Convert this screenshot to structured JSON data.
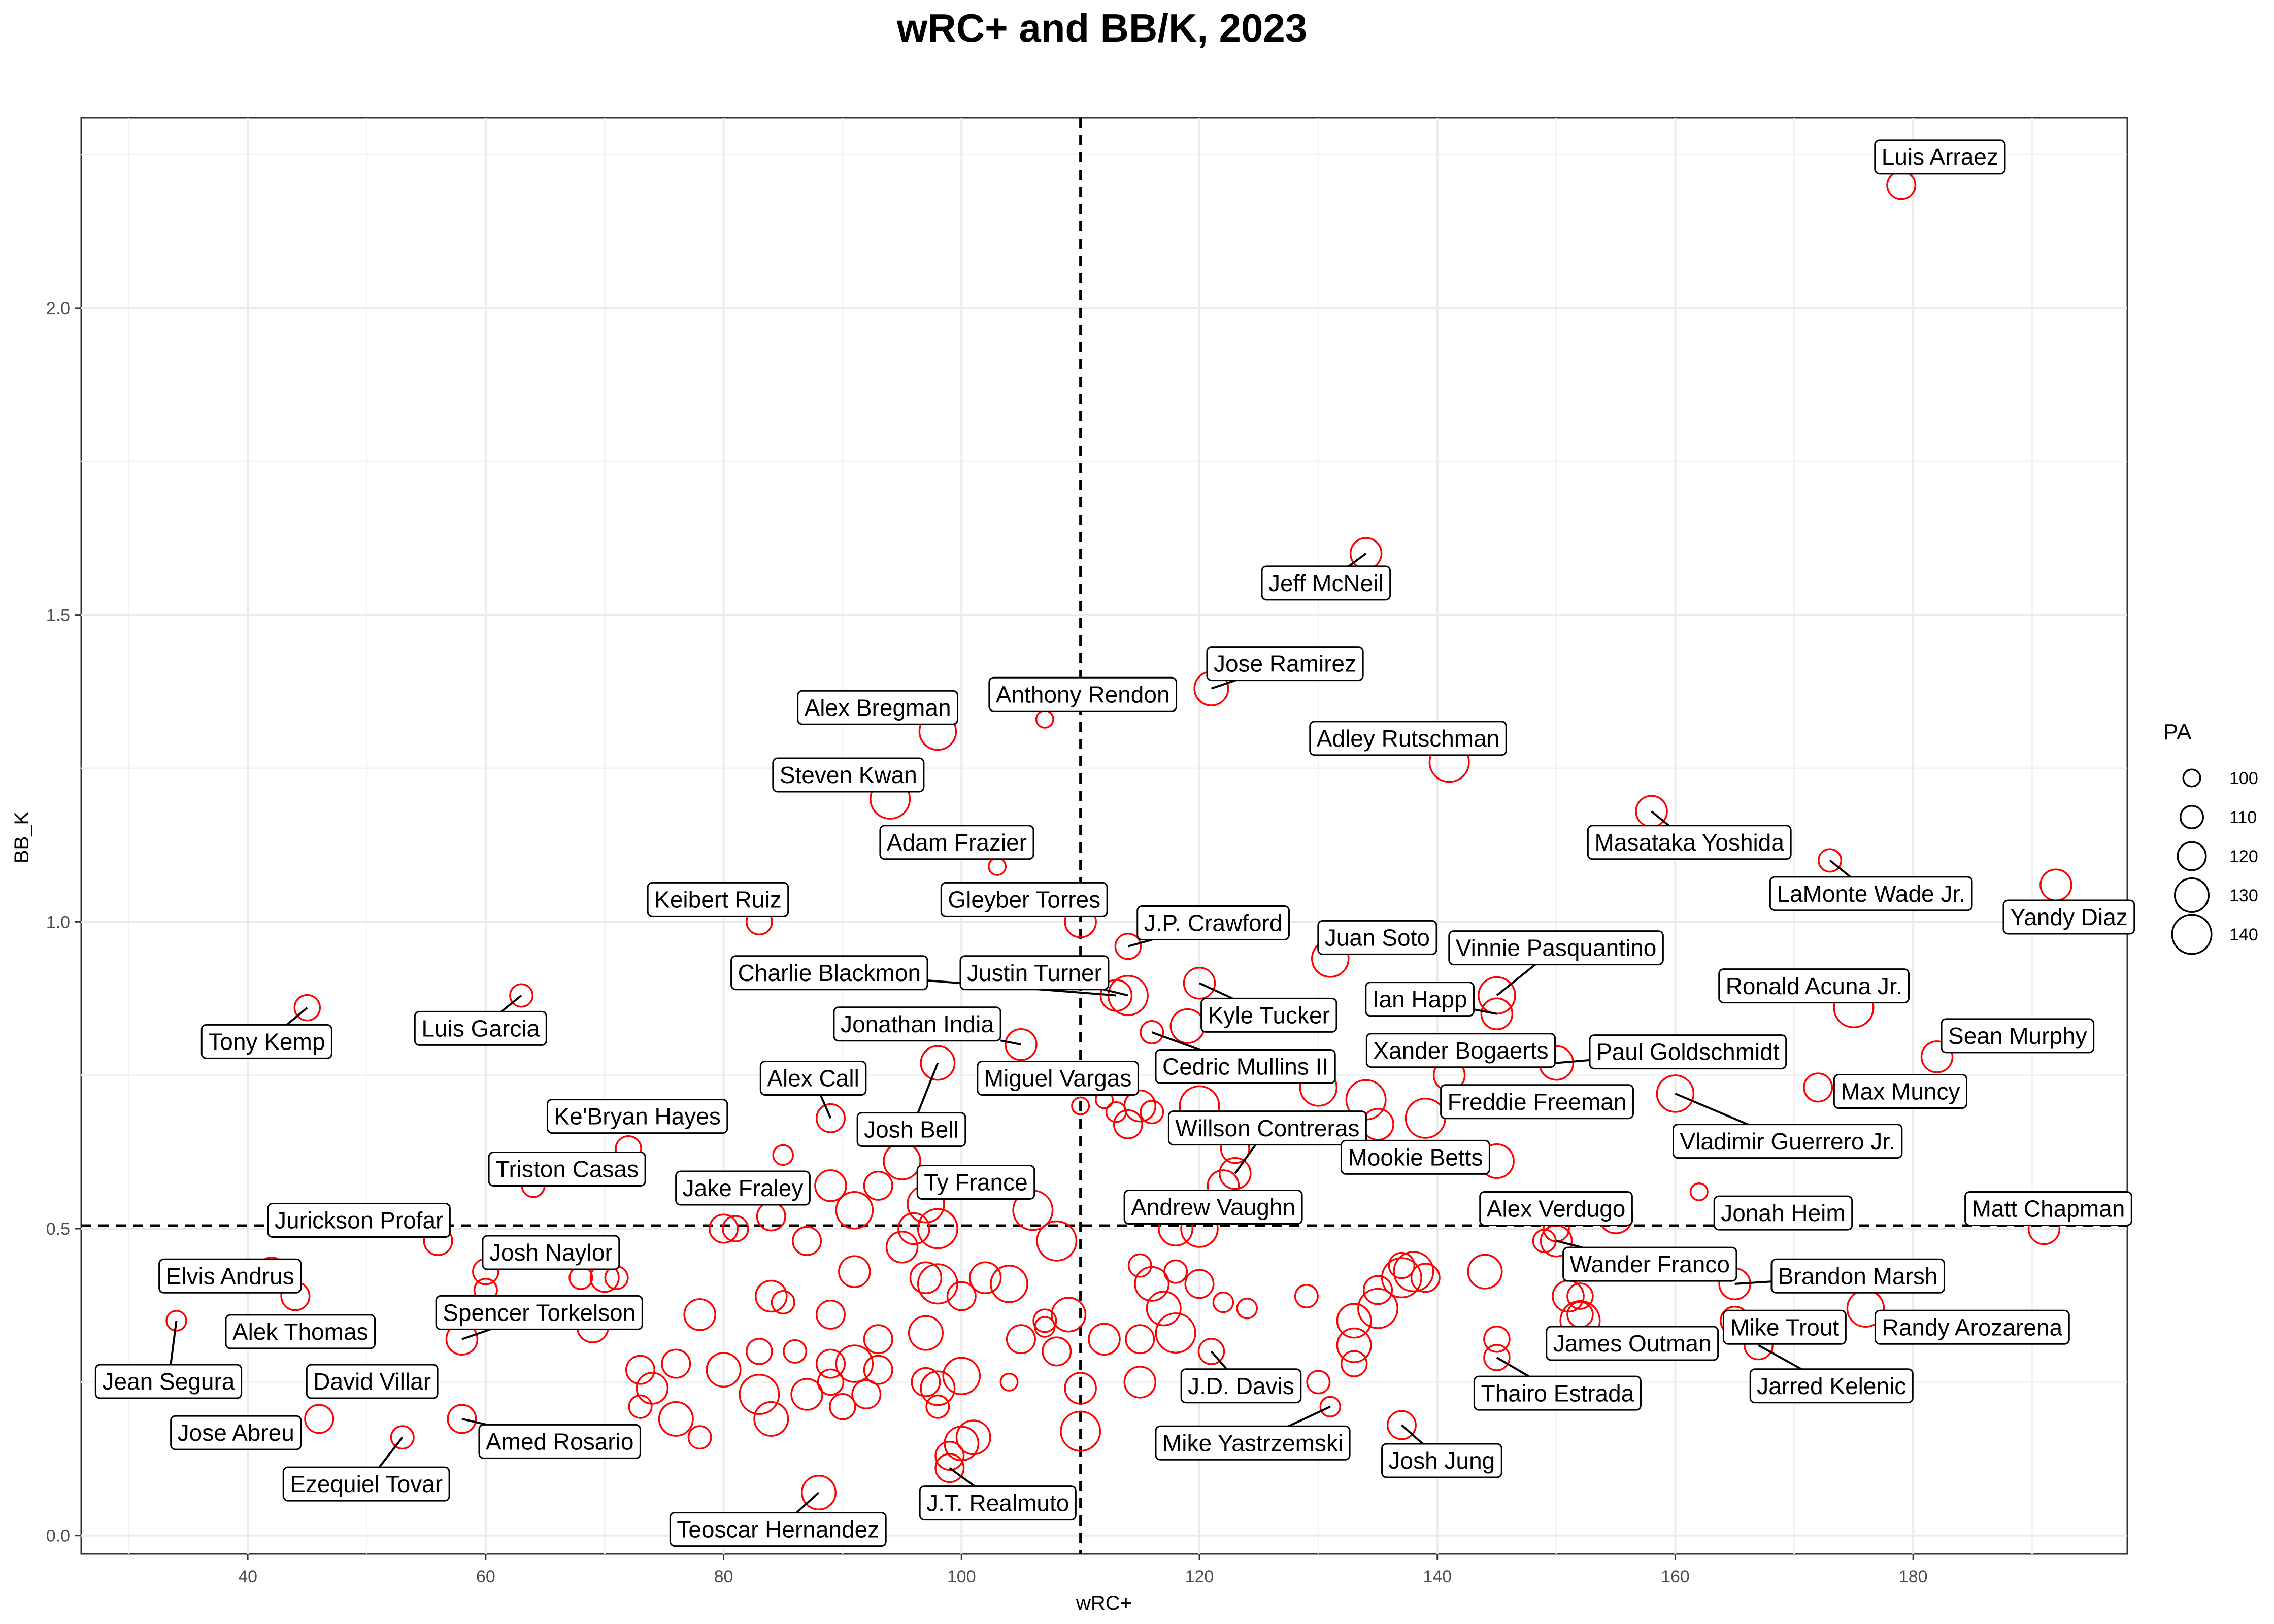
{
  "chart_data": {
    "type": "scatter",
    "title": "wRC+ and BB/K, 2023",
    "xlabel": "wRC+",
    "ylabel": "BB_K",
    "xlim": [
      26,
      198
    ],
    "ylim": [
      -0.03,
      2.31
    ],
    "x_ticks": [
      40,
      60,
      80,
      100,
      120,
      140,
      160,
      180
    ],
    "y_ticks": [
      0.0,
      0.5,
      1.0,
      1.5,
      2.0
    ],
    "y_tick_labels": [
      "0.0",
      "0.5",
      "1.0",
      "1.5",
      "2.0"
    ],
    "grid": true,
    "point_color": "#ff0000",
    "reference_lines": {
      "x": 110,
      "y": 0.505,
      "style": "dashed"
    },
    "legend": {
      "title": "PA",
      "position": "right",
      "values": [
        100,
        110,
        120,
        130,
        140
      ],
      "labels": [
        "100",
        "110",
        "120",
        "130",
        "140"
      ]
    },
    "points": [
      {
        "x": 179,
        "y": 2.2,
        "pa": 120,
        "label": "Luis Arraez",
        "lx": 1324,
        "ly": 107
      },
      {
        "x": 134,
        "y": 1.6,
        "pa": 125,
        "label": "Jeff McNeil",
        "lx": 905,
        "ly": 398
      },
      {
        "x": 121,
        "y": 1.38,
        "pa": 130,
        "label": "Jose Ramirez",
        "lx": 877,
        "ly": 453
      },
      {
        "x": 107,
        "y": 1.33,
        "pa": 100,
        "label": "Anthony Rendon",
        "lx": 739,
        "ly": 474
      },
      {
        "x": 98,
        "y": 1.31,
        "pa": 135,
        "label": "Alex Bregman",
        "lx": 599,
        "ly": 483
      },
      {
        "x": 141,
        "y": 1.26,
        "pa": 140,
        "label": "Adley Rutschman",
        "lx": 961,
        "ly": 504
      },
      {
        "x": 94,
        "y": 1.2,
        "pa": 140,
        "label": "Steven Kwan",
        "lx": 579,
        "ly": 529
      },
      {
        "x": 158,
        "y": 1.18,
        "pa": 125,
        "label": "Masataka Yoshida",
        "lx": 1153,
        "ly": 575
      },
      {
        "x": 173,
        "y": 1.1,
        "pa": 110,
        "label": "LaMonte Wade Jr.",
        "lx": 1277,
        "ly": 610
      },
      {
        "x": 103,
        "y": 1.09,
        "pa": 100,
        "label": "Adam Frazier",
        "lx": 653,
        "ly": 575
      },
      {
        "x": 192,
        "y": 1.06,
        "pa": 125,
        "label": "Yandy Diaz",
        "lx": 1412,
        "ly": 626
      },
      {
        "x": 110,
        "y": 1.0,
        "pa": 125,
        "label": "Gleyber Torres",
        "lx": 699,
        "ly": 614
      },
      {
        "x": 83,
        "y": 1.0,
        "pa": 115,
        "label": "Keibert Ruiz",
        "lx": 490,
        "ly": 614
      },
      {
        "x": 114,
        "y": 0.96,
        "pa": 115,
        "label": "J.P. Crawford",
        "lx": 828,
        "ly": 630
      },
      {
        "x": 131,
        "y": 0.94,
        "pa": 135,
        "label": "Juan Soto",
        "lx": 940,
        "ly": 640
      },
      {
        "x": 145,
        "y": 0.88,
        "pa": 135,
        "label": "Vinnie Pasquantino",
        "lx": 1062,
        "ly": 647
      },
      {
        "x": 63,
        "y": 0.88,
        "pa": 110,
        "label": "Luis Garcia",
        "lx": 328,
        "ly": 702
      },
      {
        "x": 45,
        "y": 0.86,
        "pa": 115,
        "label": "Tony Kemp",
        "lx": 182,
        "ly": 711
      },
      {
        "x": 114,
        "y": 0.88,
        "pa": 140,
        "label": "Justin Turner",
        "lx": 706,
        "ly": 664
      },
      {
        "x": 113,
        "y": 0.88,
        "pa": 125,
        "label": "Charlie Blackmon",
        "lx": 566,
        "ly": 664
      },
      {
        "x": 145,
        "y": 0.85,
        "pa": 125,
        "label": "Ian Happ",
        "lx": 969,
        "ly": 682
      },
      {
        "x": 120,
        "y": 0.9,
        "pa": 125,
        "label": "Kyle Tucker",
        "lx": 866,
        "ly": 693
      },
      {
        "x": 175,
        "y": 0.86,
        "pa": 140,
        "label": "Ronald Acuna Jr.",
        "lx": 1238,
        "ly": 673
      },
      {
        "x": 116,
        "y": 0.82,
        "pa": 110,
        "label": "Cedric Mullins II",
        "lx": 850,
        "ly": 728
      },
      {
        "x": 105,
        "y": 0.8,
        "pa": 125,
        "label": "Jonathan India",
        "lx": 626,
        "ly": 699
      },
      {
        "x": 182,
        "y": 0.78,
        "pa": 125,
        "label": "Sean Murphy",
        "lx": 1377,
        "ly": 707
      },
      {
        "x": 150,
        "y": 0.77,
        "pa": 130,
        "label": "Paul Goldschmidt",
        "lx": 1152,
        "ly": 718
      },
      {
        "x": 141,
        "y": 0.75,
        "pa": 125,
        "label": "Xander Bogaerts",
        "lx": 997,
        "ly": 717
      },
      {
        "x": 172,
        "y": 0.73,
        "pa": 120,
        "label": "Max Muncy",
        "lx": 1297,
        "ly": 745
      },
      {
        "x": 98,
        "y": 0.77,
        "pa": 130,
        "label": "Josh Bell",
        "lx": 622,
        "ly": 771
      },
      {
        "x": 110,
        "y": 0.7,
        "pa": 100,
        "label": "Miguel Vargas",
        "lx": 722,
        "ly": 736
      },
      {
        "x": 160,
        "y": 0.72,
        "pa": 135,
        "label": "Vladimir Guerrero Jr.",
        "lx": 1220,
        "ly": 779
      },
      {
        "x": 139,
        "y": 0.68,
        "pa": 140,
        "label": "Freddie Freeman",
        "lx": 1049,
        "ly": 752
      },
      {
        "x": 89,
        "y": 0.68,
        "pa": 120,
        "label": "Alex Call",
        "lx": 555,
        "ly": 736
      },
      {
        "x": 123,
        "y": 0.59,
        "pa": 125,
        "label": "Willson Contreras",
        "lx": 865,
        "ly": 770
      },
      {
        "x": 145,
        "y": 0.61,
        "pa": 130,
        "label": "Mookie Betts",
        "lx": 966,
        "ly": 790
      },
      {
        "x": 72,
        "y": 0.63,
        "pa": 115,
        "label": "Ke'Bryan Hayes",
        "lx": 435,
        "ly": 762
      },
      {
        "x": 64,
        "y": 0.57,
        "pa": 110,
        "label": "Triston Casas",
        "lx": 387,
        "ly": 798
      },
      {
        "x": 84,
        "y": 0.52,
        "pa": 120,
        "label": "Jake Fraley",
        "lx": 507,
        "ly": 811
      },
      {
        "x": 97,
        "y": 0.54,
        "pa": 135,
        "label": "Ty France",
        "lx": 666,
        "ly": 807
      },
      {
        "x": 122,
        "y": 0.57,
        "pa": 125,
        "label": "Andrew Vaughn",
        "lx": 828,
        "ly": 824
      },
      {
        "x": 155,
        "y": 0.52,
        "pa": 130,
        "label": "Alex Verdugo",
        "lx": 1062,
        "ly": 825
      },
      {
        "x": 162,
        "y": 0.56,
        "pa": 100,
        "label": "Jonah Heim",
        "lx": 1217,
        "ly": 828
      },
      {
        "x": 191,
        "y": 0.5,
        "pa": 125,
        "label": "Matt Chapman",
        "lx": 1398,
        "ly": 825
      },
      {
        "x": 56,
        "y": 0.48,
        "pa": 120,
        "label": "Jurickson Profar",
        "lx": 245,
        "ly": 833
      },
      {
        "x": 70,
        "y": 0.42,
        "pa": 120,
        "label": "Josh Naylor",
        "lx": 376,
        "ly": 855
      },
      {
        "x": 150,
        "y": 0.48,
        "pa": 125,
        "label": "Wander Franco",
        "lx": 1126,
        "ly": 863
      },
      {
        "x": 165,
        "y": 0.41,
        "pa": 125,
        "label": "Brandon Marsh",
        "lx": 1268,
        "ly": 871
      },
      {
        "x": 44,
        "y": 0.39,
        "pa": 120,
        "label": "Alek Thomas",
        "lx": 205,
        "ly": 909
      },
      {
        "x": 176,
        "y": 0.37,
        "pa": 135,
        "label": "Randy Arozarena",
        "lx": 1346,
        "ly": 906
      },
      {
        "x": 34,
        "y": 0.35,
        "pa": 105,
        "label": "Jean Segura",
        "lx": 115,
        "ly": 943
      },
      {
        "x": 42,
        "y": 0.43,
        "pa": 120,
        "label": "Elvis Andrus",
        "lx": 157,
        "ly": 871
      },
      {
        "x": 58,
        "y": 0.32,
        "pa": 125,
        "label": "Spencer Torkelson",
        "lx": 368,
        "ly": 896
      },
      {
        "x": 165,
        "y": 0.35,
        "pa": 120,
        "label": "Mike Trout",
        "lx": 1218,
        "ly": 906
      },
      {
        "x": 152,
        "y": 0.35,
        "pa": 140,
        "label": "James Outman",
        "lx": 1114,
        "ly": 917
      },
      {
        "x": 167,
        "y": 0.31,
        "pa": 120,
        "label": "Jarred Kelenic",
        "lx": 1250,
        "ly": 946
      },
      {
        "x": 55,
        "y": 0.25,
        "pa": 95,
        "label": "David Villar",
        "lx": 254,
        "ly": 943
      },
      {
        "x": 145,
        "y": 0.29,
        "pa": 115,
        "label": "Thairo Estrada",
        "lx": 1063,
        "ly": 951
      },
      {
        "x": 121,
        "y": 0.3,
        "pa": 115,
        "label": "J.D. Davis",
        "lx": 847,
        "ly": 946
      },
      {
        "x": 46,
        "y": 0.19,
        "pa": 120,
        "label": "Jose Abreu",
        "lx": 161,
        "ly": 978
      },
      {
        "x": 58,
        "y": 0.19,
        "pa": 120,
        "label": "Amed Rosario",
        "lx": 382,
        "ly": 984
      },
      {
        "x": 131,
        "y": 0.21,
        "pa": 105,
        "label": "Mike Yastrzemski",
        "lx": 855,
        "ly": 985
      },
      {
        "x": 137,
        "y": 0.18,
        "pa": 120,
        "label": "Josh Jung",
        "lx": 984,
        "ly": 997
      },
      {
        "x": 53,
        "y": 0.16,
        "pa": 110,
        "label": "Ezequiel Tovar",
        "lx": 250,
        "ly": 1013
      },
      {
        "x": 99,
        "y": 0.11,
        "pa": 120,
        "label": "J.T. Realmuto",
        "lx": 681,
        "ly": 1026
      },
      {
        "x": 88,
        "y": 0.07,
        "pa": 130,
        "label": "Teoscar Hernandez",
        "lx": 531,
        "ly": 1044
      },
      {
        "x": 80,
        "y": 0.5,
        "pa": 120
      },
      {
        "x": 81,
        "y": 0.5,
        "pa": 115
      },
      {
        "x": 87,
        "y": 0.48,
        "pa": 120
      },
      {
        "x": 89,
        "y": 0.57,
        "pa": 125
      },
      {
        "x": 91,
        "y": 0.53,
        "pa": 135
      },
      {
        "x": 93,
        "y": 0.57,
        "pa": 120
      },
      {
        "x": 95,
        "y": 0.61,
        "pa": 135
      },
      {
        "x": 96,
        "y": 0.5,
        "pa": 125
      },
      {
        "x": 98,
        "y": 0.5,
        "pa": 140
      },
      {
        "x": 95,
        "y": 0.47,
        "pa": 125
      },
      {
        "x": 91,
        "y": 0.43,
        "pa": 125
      },
      {
        "x": 97,
        "y": 0.42,
        "pa": 125
      },
      {
        "x": 98,
        "y": 0.41,
        "pa": 140
      },
      {
        "x": 100,
        "y": 0.39,
        "pa": 120
      },
      {
        "x": 102,
        "y": 0.42,
        "pa": 125
      },
      {
        "x": 104,
        "y": 0.41,
        "pa": 135
      },
      {
        "x": 106,
        "y": 0.53,
        "pa": 140
      },
      {
        "x": 108,
        "y": 0.48,
        "pa": 140
      },
      {
        "x": 109,
        "y": 0.36,
        "pa": 130
      },
      {
        "x": 107,
        "y": 0.34,
        "pa": 105
      },
      {
        "x": 105,
        "y": 0.32,
        "pa": 120
      },
      {
        "x": 108,
        "y": 0.3,
        "pa": 120
      },
      {
        "x": 110,
        "y": 0.24,
        "pa": 125
      },
      {
        "x": 110,
        "y": 0.17,
        "pa": 140
      },
      {
        "x": 97,
        "y": 0.33,
        "pa": 130
      },
      {
        "x": 93,
        "y": 0.32,
        "pa": 120
      },
      {
        "x": 89,
        "y": 0.36,
        "pa": 120
      },
      {
        "x": 84,
        "y": 0.39,
        "pa": 125
      },
      {
        "x": 85,
        "y": 0.38,
        "pa": 110
      },
      {
        "x": 78,
        "y": 0.36,
        "pa": 125
      },
      {
        "x": 80,
        "y": 0.27,
        "pa": 130
      },
      {
        "x": 83,
        "y": 0.3,
        "pa": 115
      },
      {
        "x": 86,
        "y": 0.3,
        "pa": 110
      },
      {
        "x": 89,
        "y": 0.28,
        "pa": 120
      },
      {
        "x": 91,
        "y": 0.28,
        "pa": 135
      },
      {
        "x": 93,
        "y": 0.27,
        "pa": 120
      },
      {
        "x": 92,
        "y": 0.23,
        "pa": 120
      },
      {
        "x": 90,
        "y": 0.21,
        "pa": 115
      },
      {
        "x": 89,
        "y": 0.25,
        "pa": 115
      },
      {
        "x": 87,
        "y": 0.23,
        "pa": 125
      },
      {
        "x": 83,
        "y": 0.23,
        "pa": 140
      },
      {
        "x": 84,
        "y": 0.19,
        "pa": 130
      },
      {
        "x": 76,
        "y": 0.28,
        "pa": 120
      },
      {
        "x": 74,
        "y": 0.24,
        "pa": 125
      },
      {
        "x": 73,
        "y": 0.27,
        "pa": 120
      },
      {
        "x": 73,
        "y": 0.21,
        "pa": 110
      },
      {
        "x": 76,
        "y": 0.19,
        "pa": 130
      },
      {
        "x": 78,
        "y": 0.16,
        "pa": 110
      },
      {
        "x": 97,
        "y": 0.25,
        "pa": 120
      },
      {
        "x": 98,
        "y": 0.24,
        "pa": 130
      },
      {
        "x": 98,
        "y": 0.21,
        "pa": 110
      },
      {
        "x": 100,
        "y": 0.26,
        "pa": 135
      },
      {
        "x": 100,
        "y": 0.15,
        "pa": 130
      },
      {
        "x": 101,
        "y": 0.16,
        "pa": 130
      },
      {
        "x": 99,
        "y": 0.13,
        "pa": 120
      },
      {
        "x": 104,
        "y": 0.25,
        "pa": 100
      },
      {
        "x": 112,
        "y": 0.32,
        "pa": 125
      },
      {
        "x": 115,
        "y": 0.32,
        "pa": 120
      },
      {
        "x": 115,
        "y": 0.25,
        "pa": 125
      },
      {
        "x": 117,
        "y": 0.37,
        "pa": 130
      },
      {
        "x": 118,
        "y": 0.33,
        "pa": 140
      },
      {
        "x": 116,
        "y": 0.41,
        "pa": 130
      },
      {
        "x": 115,
        "y": 0.44,
        "pa": 110
      },
      {
        "x": 118,
        "y": 0.43,
        "pa": 110
      },
      {
        "x": 120,
        "y": 0.41,
        "pa": 120
      },
      {
        "x": 122,
        "y": 0.38,
        "pa": 105
      },
      {
        "x": 124,
        "y": 0.37,
        "pa": 105
      },
      {
        "x": 118,
        "y": 0.5,
        "pa": 130
      },
      {
        "x": 120,
        "y": 0.5,
        "pa": 135
      },
      {
        "x": 112,
        "y": 0.71,
        "pa": 100
      },
      {
        "x": 113,
        "y": 0.69,
        "pa": 105
      },
      {
        "x": 114,
        "y": 0.67,
        "pa": 120
      },
      {
        "x": 115,
        "y": 0.7,
        "pa": 125
      },
      {
        "x": 116,
        "y": 0.69,
        "pa": 110
      },
      {
        "x": 119,
        "y": 0.83,
        "pa": 130
      },
      {
        "x": 120,
        "y": 0.7,
        "pa": 140
      },
      {
        "x": 123,
        "y": 0.63,
        "pa": 120
      },
      {
        "x": 130,
        "y": 0.73,
        "pa": 135
      },
      {
        "x": 134,
        "y": 0.71,
        "pa": 140
      },
      {
        "x": 135,
        "y": 0.67,
        "pa": 125
      },
      {
        "x": 129,
        "y": 0.39,
        "pa": 110
      },
      {
        "x": 133,
        "y": 0.35,
        "pa": 130
      },
      {
        "x": 133,
        "y": 0.31,
        "pa": 130
      },
      {
        "x": 133,
        "y": 0.28,
        "pa": 115
      },
      {
        "x": 135,
        "y": 0.37,
        "pa": 140
      },
      {
        "x": 135,
        "y": 0.4,
        "pa": 120
      },
      {
        "x": 137,
        "y": 0.42,
        "pa": 140
      },
      {
        "x": 138,
        "y": 0.43,
        "pa": 140
      },
      {
        "x": 139,
        "y": 0.42,
        "pa": 120
      },
      {
        "x": 137,
        "y": 0.44,
        "pa": 115
      },
      {
        "x": 144,
        "y": 0.43,
        "pa": 130
      },
      {
        "x": 145,
        "y": 0.32,
        "pa": 115
      },
      {
        "x": 149,
        "y": 0.48,
        "pa": 110
      },
      {
        "x": 150,
        "y": 0.5,
        "pa": 115
      },
      {
        "x": 151,
        "y": 0.39,
        "pa": 125
      },
      {
        "x": 152,
        "y": 0.39,
        "pa": 115
      },
      {
        "x": 152,
        "y": 0.36,
        "pa": 115
      },
      {
        "x": 130,
        "y": 0.25,
        "pa": 110
      },
      {
        "x": 60,
        "y": 0.43,
        "pa": 115
      },
      {
        "x": 60,
        "y": 0.4,
        "pa": 110
      },
      {
        "x": 68,
        "y": 0.42,
        "pa": 110
      },
      {
        "x": 71,
        "y": 0.42,
        "pa": 110
      },
      {
        "x": 69,
        "y": 0.34,
        "pa": 125
      },
      {
        "x": 85,
        "y": 0.62,
        "pa": 105
      },
      {
        "x": 107,
        "y": 0.35,
        "pa": 110
      }
    ]
  }
}
